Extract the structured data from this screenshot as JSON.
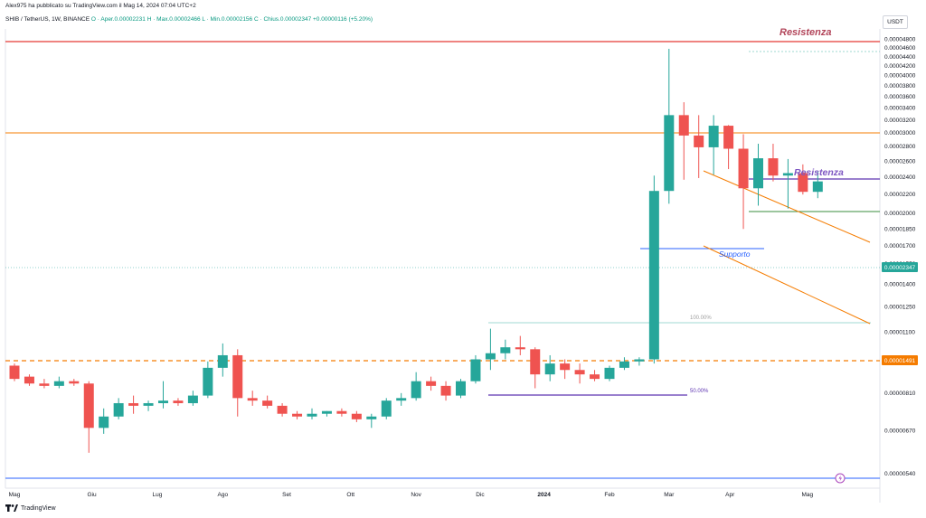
{
  "header": {
    "publisher": "Alex975 ha pubblicato su TradingView.com il Mag 14, 2024 07:04 UTC+2",
    "symbol": "SHIB / TetherUS, 1W, BINANCE",
    "ohlc": "O · Aper.0.00002231  H · Max.0.00002466  L · Min.0.00002156  C · Chius.0.00002347  +0.00000116 (+5.20%)"
  },
  "unit_button": "USDT",
  "footer": {
    "logo_icon": "tradingview-logo-icon",
    "brand": "TradingView"
  },
  "colors": {
    "up": "#26a69a",
    "down": "#ef5350",
    "resistance_line": "#e53935",
    "support_level": "#f57c00",
    "annotation_text": "#b2455a",
    "purple_text": "#7e57c2"
  },
  "chart_data": {
    "type": "candlestick",
    "scale": "log",
    "ylim": [
      5.3e-06,
      4.8e-06
    ],
    "y_ticks": [
      "0.00004800",
      "0.00004600",
      "0.00004400",
      "0.00004200",
      "0.00004000",
      "0.00003800",
      "0.00003600",
      "0.00003400",
      "0.00003200",
      "0.00003000",
      "0.00002800",
      "0.00002600",
      "0.00002400",
      "0.00002200",
      "0.00002000",
      "0.00001850",
      "0.00001700",
      "0.00001550",
      "0.00001400",
      "0.00001250",
      "0.00001100",
      "0.00000950",
      "0.00000810",
      "0.00000670",
      "0.00000540"
    ],
    "y_tick_values": [
      4.8e-05,
      4.6e-05,
      4.4e-05,
      4.2e-05,
      4e-05,
      3.8e-05,
      3.6e-05,
      3.4e-05,
      3.2e-05,
      3e-05,
      2.8e-05,
      2.6e-05,
      2.4e-05,
      2.2e-05,
      2e-05,
      1.85e-05,
      1.7e-05,
      1.55e-05,
      1.4e-05,
      1.25e-05,
      1.1e-05,
      9.5e-06,
      8.1e-06,
      6.7e-06,
      5.4e-06
    ],
    "x_labels": [
      "Mag",
      "Giu",
      "Lug",
      "Ago",
      "Set",
      "Ott",
      "Nov",
      "Dic",
      "2024",
      "Feb",
      "Mar",
      "Apr",
      "Mag"
    ],
    "x_label_weeks": [
      0,
      5.2,
      9.6,
      14.0,
      18.3,
      22.6,
      27.0,
      31.3,
      35.6,
      40.0,
      44.0,
      48.1,
      53.3
    ],
    "candles": [
      {
        "o": 9.3e-06,
        "h": 9.4e-06,
        "l": 8.6e-06,
        "c": 8.7e-06
      },
      {
        "o": 8.8e-06,
        "h": 8.9e-06,
        "l": 8.4e-06,
        "c": 8.5e-06
      },
      {
        "o": 8.5e-06,
        "h": 8.7e-06,
        "l": 8.3e-06,
        "c": 8.4e-06
      },
      {
        "o": 8.4e-06,
        "h": 8.8e-06,
        "l": 8.3e-06,
        "c": 8.6e-06
      },
      {
        "o": 8.6e-06,
        "h": 8.7e-06,
        "l": 8.4e-06,
        "c": 8.5e-06
      },
      {
        "o": 8.5e-06,
        "h": 8.6e-06,
        "l": 6e-06,
        "c": 6.8e-06
      },
      {
        "o": 6.8e-06,
        "h": 7.5e-06,
        "l": 6.6e-06,
        "c": 7.2e-06
      },
      {
        "o": 7.2e-06,
        "h": 7.9e-06,
        "l": 7.1e-06,
        "c": 7.7e-06
      },
      {
        "o": 7.7e-06,
        "h": 8e-06,
        "l": 7.3e-06,
        "c": 7.6e-06
      },
      {
        "o": 7.6e-06,
        "h": 7.8e-06,
        "l": 7.4e-06,
        "c": 7.7e-06
      },
      {
        "o": 7.7e-06,
        "h": 8.6e-06,
        "l": 7.5e-06,
        "c": 7.8e-06
      },
      {
        "o": 7.8e-06,
        "h": 7.9e-06,
        "l": 7.6e-06,
        "c": 7.7e-06
      },
      {
        "o": 7.7e-06,
        "h": 8.2e-06,
        "l": 7.6e-06,
        "c": 8e-06
      },
      {
        "o": 8e-06,
        "h": 9.5e-06,
        "l": 7.9e-06,
        "c": 9.2e-06
      },
      {
        "o": 9.2e-06,
        "h": 1.04e-05,
        "l": 8.8e-06,
        "c": 9.8e-06
      },
      {
        "o": 9.8e-06,
        "h": 1.01e-05,
        "l": 7.2e-06,
        "c": 7.9e-06
      },
      {
        "o": 7.9e-06,
        "h": 8.2e-06,
        "l": 7.6e-06,
        "c": 7.8e-06
      },
      {
        "o": 7.8e-06,
        "h": 8e-06,
        "l": 7.5e-06,
        "c": 7.6e-06
      },
      {
        "o": 7.6e-06,
        "h": 7.7e-06,
        "l": 7.2e-06,
        "c": 7.3e-06
      },
      {
        "o": 7.3e-06,
        "h": 7.4e-06,
        "l": 7.1e-06,
        "c": 7.2e-06
      },
      {
        "o": 7.2e-06,
        "h": 7.5e-06,
        "l": 7.1e-06,
        "c": 7.3e-06
      },
      {
        "o": 7.3e-06,
        "h": 7.4e-06,
        "l": 7.2e-06,
        "c": 7.4e-06
      },
      {
        "o": 7.4e-06,
        "h": 7.5e-06,
        "l": 7.2e-06,
        "c": 7.3e-06
      },
      {
        "o": 7.3e-06,
        "h": 7.4e-06,
        "l": 7e-06,
        "c": 7.1e-06
      },
      {
        "o": 7.1e-06,
        "h": 7.3e-06,
        "l": 6.8e-06,
        "c": 7.2e-06
      },
      {
        "o": 7.2e-06,
        "h": 7.9e-06,
        "l": 7.1e-06,
        "c": 7.8e-06
      },
      {
        "o": 7.8e-06,
        "h": 8.1e-06,
        "l": 7.6e-06,
        "c": 7.9e-06
      },
      {
        "o": 7.9e-06,
        "h": 9e-06,
        "l": 7.8e-06,
        "c": 8.6e-06
      },
      {
        "o": 8.6e-06,
        "h": 8.8e-06,
        "l": 8.2e-06,
        "c": 8.4e-06
      },
      {
        "o": 8.4e-06,
        "h": 8.6e-06,
        "l": 7.8e-06,
        "c": 8e-06
      },
      {
        "o": 8e-06,
        "h": 8.7e-06,
        "l": 7.9e-06,
        "c": 8.6e-06
      },
      {
        "o": 8.6e-06,
        "h": 9.8e-06,
        "l": 8.5e-06,
        "c": 9.6e-06
      },
      {
        "o": 9.6e-06,
        "h": 1.12e-05,
        "l": 9.1e-06,
        "c": 9.9e-06
      },
      {
        "o": 9.9e-06,
        "h": 1.06e-05,
        "l": 9.6e-06,
        "c": 1.02e-05
      },
      {
        "o": 1.02e-05,
        "h": 1.08e-05,
        "l": 9.8e-06,
        "c": 1.01e-05
      },
      {
        "o": 1.01e-05,
        "h": 1.02e-05,
        "l": 8.3e-06,
        "c": 8.9e-06
      },
      {
        "o": 8.9e-06,
        "h": 9.8e-06,
        "l": 8.6e-06,
        "c": 9.4e-06
      },
      {
        "o": 9.4e-06,
        "h": 9.6e-06,
        "l": 8.7e-06,
        "c": 9.1e-06
      },
      {
        "o": 9.1e-06,
        "h": 9.4e-06,
        "l": 8.5e-06,
        "c": 8.9e-06
      },
      {
        "o": 8.9e-06,
        "h": 9.1e-06,
        "l": 8.6e-06,
        "c": 8.7e-06
      },
      {
        "o": 8.7e-06,
        "h": 9.3e-06,
        "l": 8.6e-06,
        "c": 9.2e-06
      },
      {
        "o": 9.2e-06,
        "h": 9.7e-06,
        "l": 9.1e-06,
        "c": 9.5e-06
      },
      {
        "o": 9.5e-06,
        "h": 9.7e-06,
        "l": 9.3e-06,
        "c": 9.6e-06
      },
      {
        "o": 9.6e-06,
        "h": 2.42e-05,
        "l": 9.4e-06,
        "c": 2.24e-05
      },
      {
        "o": 2.24e-05,
        "h": 4.58e-05,
        "l": 2.1e-05,
        "c": 3.28e-05
      },
      {
        "o": 3.28e-05,
        "h": 3.5e-05,
        "l": 2.37e-05,
        "c": 2.96e-05
      },
      {
        "o": 2.96e-05,
        "h": 3.28e-05,
        "l": 2.39e-05,
        "c": 2.79e-05
      },
      {
        "o": 2.79e-05,
        "h": 3.28e-05,
        "l": 2.43e-05,
        "c": 3.11e-05
      },
      {
        "o": 3.11e-05,
        "h": 3.12e-05,
        "l": 2.5e-05,
        "c": 2.77e-05
      },
      {
        "o": 2.77e-05,
        "h": 2.98e-05,
        "l": 1.85e-05,
        "c": 2.27e-05
      },
      {
        "o": 2.27e-05,
        "h": 2.84e-05,
        "l": 2.08e-05,
        "c": 2.64e-05
      },
      {
        "o": 2.64e-05,
        "h": 2.84e-05,
        "l": 2.35e-05,
        "c": 2.42e-05
      },
      {
        "o": 2.42e-05,
        "h": 2.63e-05,
        "l": 2.05e-05,
        "c": 2.45e-05
      },
      {
        "o": 2.45e-05,
        "h": 2.56e-05,
        "l": 2.2e-05,
        "c": 2.23e-05
      },
      {
        "o": 2.23e-05,
        "h": 2.47e-05,
        "l": 2.16e-05,
        "c": 2.35e-05
      }
    ],
    "current_price_label": "0.00002347",
    "support_level_label": "0.00001491",
    "annotations": {
      "resistenza_top": "Resistenza",
      "resistenza_mid": "Resistenza",
      "supporto": "Supporto",
      "fib_100": "100.00%",
      "fib_50": "50.00%"
    }
  }
}
